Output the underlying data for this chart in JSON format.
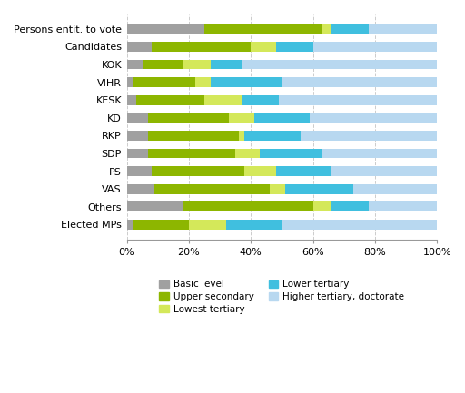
{
  "categories": [
    "Persons entit. to vote",
    "Candidates",
    "KOK",
    "VIHR",
    "KESK",
    "KD",
    "RKP",
    "SDP",
    "PS",
    "VAS",
    "Others",
    "Elected MPs"
  ],
  "segments": {
    "Basic level": [
      25,
      8,
      5,
      2,
      3,
      7,
      7,
      7,
      8,
      9,
      18,
      2
    ],
    "Upper secondary": [
      38,
      32,
      13,
      20,
      22,
      26,
      29,
      28,
      30,
      37,
      42,
      18
    ],
    "Lowest tertiary": [
      3,
      8,
      9,
      5,
      12,
      8,
      2,
      8,
      10,
      5,
      6,
      12
    ],
    "Lower tertiary": [
      12,
      12,
      10,
      23,
      12,
      18,
      18,
      20,
      18,
      22,
      12,
      18
    ],
    "Higher tertiary, doctorate": [
      22,
      40,
      63,
      50,
      51,
      41,
      44,
      37,
      34,
      27,
      22,
      50
    ]
  },
  "colors": {
    "Basic level": "#a0a0a0",
    "Upper secondary": "#8db600",
    "Lowest tertiary": "#d4e85a",
    "Lower tertiary": "#40bfdf",
    "Higher tertiary, doctorate": "#b8d8f0"
  },
  "legend_order": [
    "Basic level",
    "Upper secondary",
    "Lowest tertiary",
    "Lower tertiary",
    "Higher tertiary, doctorate"
  ],
  "xlim": [
    0,
    100
  ],
  "bar_height": 0.55,
  "background_color": "#ffffff",
  "grid_color": "#cccccc"
}
